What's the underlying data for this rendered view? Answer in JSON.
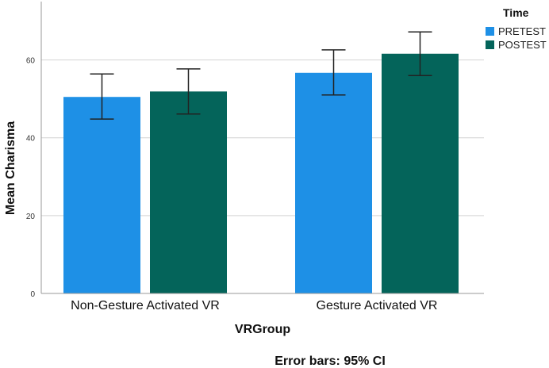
{
  "chart_data": {
    "type": "bar",
    "categories": [
      "Non-Gesture Activated VR",
      "Gesture Activated VR"
    ],
    "series": [
      {
        "name": "PRETEST",
        "color": "#1e90e6",
        "values": [
          50.5,
          56.7
        ],
        "ci_low": [
          44.8,
          51.0
        ],
        "ci_high": [
          56.4,
          62.6
        ]
      },
      {
        "name": "POSTEST",
        "color": "#04645a",
        "values": [
          51.9,
          61.6
        ],
        "ci_low": [
          46.1,
          56.0
        ],
        "ci_high": [
          57.7,
          67.2
        ]
      }
    ],
    "xlabel": "VRGroup",
    "ylabel": "Mean Charisma",
    "ylim": [
      0,
      75
    ],
    "yticks": [
      0,
      20,
      40,
      60
    ],
    "grid": true,
    "legend_title": "Time",
    "legend_position": "top-right",
    "note": "Error bars: 95% CI"
  }
}
